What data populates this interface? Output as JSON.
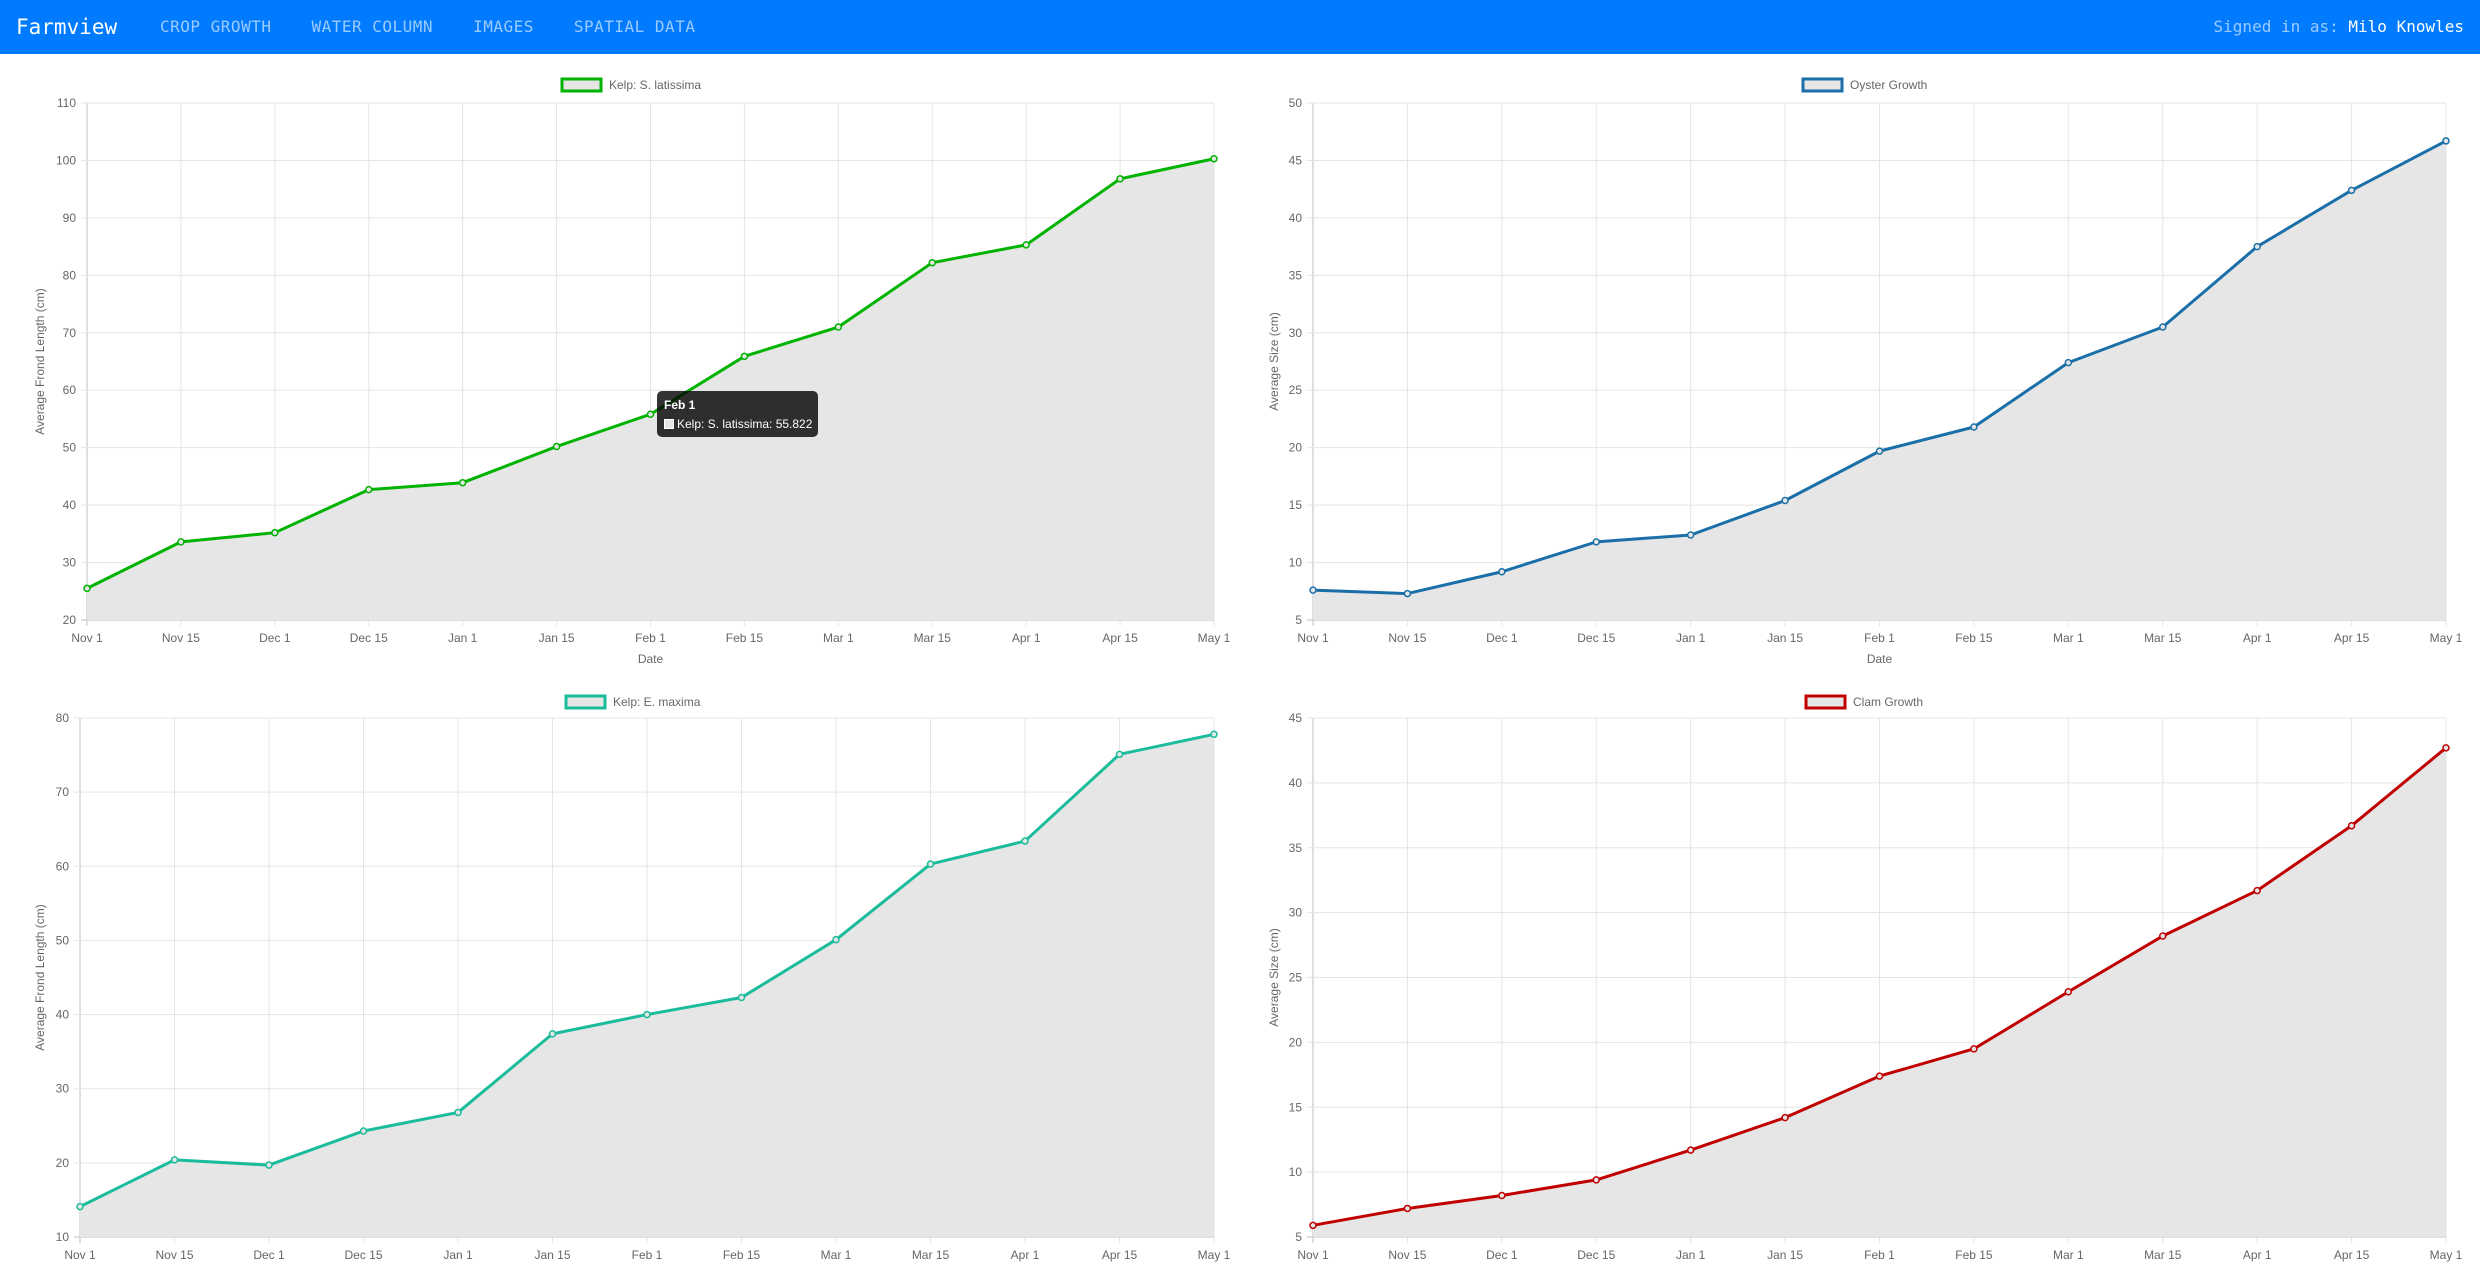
{
  "navbar": {
    "brand": "Farmview",
    "links": [
      "CROP GROWTH",
      "WATER COLUMN",
      "IMAGES",
      "SPATIAL DATA"
    ],
    "signed_in_label": "Signed in as:",
    "user_name": "Milo Knowles",
    "background_color": "#007bff"
  },
  "tooltip": {
    "title": "Feb 1",
    "series": "Kelp: S. latissima",
    "value": "55.822",
    "text": "Kelp: S. latissima: 55.822"
  },
  "chart_data": [
    {
      "type": "area",
      "legend": "Kelp: S. latissima",
      "color": "#00b300",
      "fill_color": "#e6e6e6",
      "legend_position": "top",
      "grid": true,
      "xlabel": "Date",
      "ylabel": "Average Frond Length (cm)",
      "categories": [
        "Nov 1",
        "Nov 15",
        "Dec 1",
        "Dec 15",
        "Jan 1",
        "Jan 15",
        "Feb 1",
        "Feb 15",
        "Mar 1",
        "Mar 15",
        "Apr 1",
        "Apr 15",
        "May 1"
      ],
      "values": [
        25.5,
        33.6,
        35.2,
        42.7,
        43.9,
        50.2,
        55.822,
        65.9,
        71.0,
        82.2,
        85.3,
        96.8,
        100.3
      ],
      "ylim": [
        20,
        110
      ],
      "yticks": [
        20,
        30,
        40,
        50,
        60,
        70,
        80,
        90,
        100,
        110
      ]
    },
    {
      "type": "area",
      "legend": "Oyster Growth",
      "color": "#1a6fa8",
      "fill_color": "#e6e6e6",
      "legend_position": "top",
      "grid": true,
      "xlabel": "Date",
      "ylabel": "Average Size (cm)",
      "categories": [
        "Nov 1",
        "Nov 15",
        "Dec 1",
        "Dec 15",
        "Jan 1",
        "Jan 15",
        "Feb 1",
        "Feb 15",
        "Mar 1",
        "Mar 15",
        "Apr 1",
        "Apr 15",
        "May 1"
      ],
      "values": [
        7.6,
        7.3,
        9.2,
        11.8,
        12.4,
        15.4,
        19.7,
        21.8,
        27.4,
        30.5,
        37.5,
        42.4,
        46.7
      ],
      "ylim": [
        5,
        50
      ],
      "yticks": [
        5,
        10,
        15,
        20,
        25,
        30,
        35,
        40,
        45,
        50
      ]
    },
    {
      "type": "area",
      "legend": "Kelp: E. maxima",
      "color": "#1abc9c",
      "fill_color": "#e6e6e6",
      "legend_position": "top",
      "grid": true,
      "xlabel": "",
      "ylabel": "Average Frond Length (cm)",
      "categories": [
        "Nov 1",
        "Nov 15",
        "Dec 1",
        "Dec 15",
        "Jan 1",
        "Jan 15",
        "Feb 1",
        "Feb 15",
        "Mar 1",
        "Mar 15",
        "Apr 1",
        "Apr 15",
        "May 1"
      ],
      "values": [
        14.1,
        20.4,
        19.7,
        24.3,
        26.8,
        37.4,
        40.0,
        42.3,
        50.1,
        60.3,
        63.4,
        75.1,
        77.8
      ],
      "ylim": [
        10,
        80
      ],
      "yticks": [
        10,
        20,
        30,
        40,
        50,
        60,
        70,
        80
      ]
    },
    {
      "type": "area",
      "legend": "Clam Growth",
      "color": "#c00000",
      "fill_color": "#e6e6e6",
      "legend_position": "top",
      "grid": true,
      "xlabel": "",
      "ylabel": "Average Size (cm)",
      "categories": [
        "Nov 1",
        "Nov 15",
        "Dec 1",
        "Dec 15",
        "Jan 1",
        "Jan 15",
        "Feb 1",
        "Feb 15",
        "Mar 1",
        "Mar 15",
        "Apr 1",
        "Apr 15",
        "May 1"
      ],
      "values": [
        5.9,
        7.2,
        8.2,
        9.4,
        11.7,
        14.2,
        17.4,
        19.5,
        23.9,
        28.2,
        31.7,
        36.7,
        42.7
      ],
      "ylim": [
        5,
        45
      ],
      "yticks": [
        5,
        10,
        15,
        20,
        25,
        30,
        35,
        40,
        45
      ]
    }
  ]
}
